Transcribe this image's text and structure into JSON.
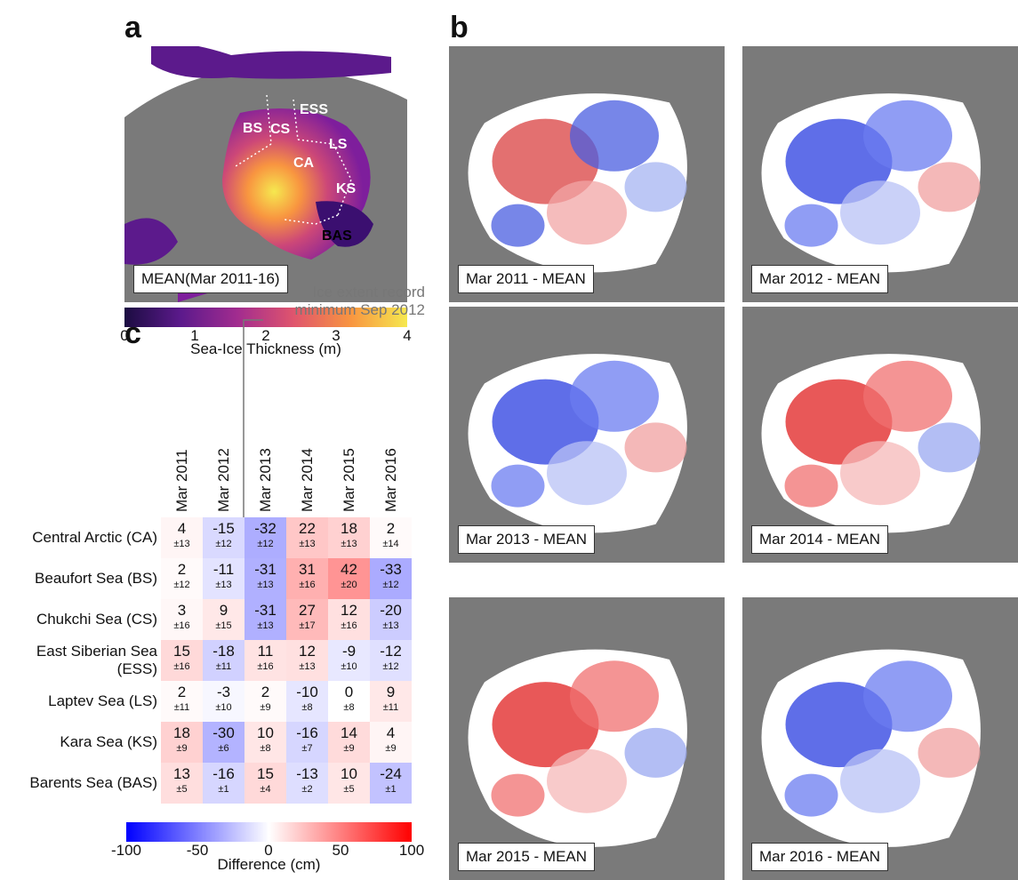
{
  "panel_a": {
    "letter": "a",
    "label": "MEAN(Mar 2011-16)",
    "regions": [
      "CS",
      "ESS",
      "BS",
      "LS",
      "CA",
      "KS",
      "BAS"
    ],
    "colorbar": {
      "ticks": [
        "0",
        "1",
        "2",
        "3",
        "4"
      ],
      "title": "Sea-Ice Thickness (m)",
      "colors": [
        "#1b0c41",
        "#5c1a8c",
        "#a22c8f",
        "#e0556d",
        "#f89540",
        "#f6e84f"
      ]
    }
  },
  "panel_b": {
    "letter": "b",
    "maps": [
      {
        "label": "Mar 2011 - MEAN",
        "pattern": "mixed"
      },
      {
        "label": "Mar 2012 - MEAN",
        "pattern": "blue"
      },
      {
        "label": "Mar 2013 - MEAN",
        "pattern": "blue"
      },
      {
        "label": "Mar 2014 - MEAN",
        "pattern": "red"
      },
      {
        "label": "Mar 2015 - MEAN",
        "pattern": "red"
      },
      {
        "label": "Mar 2016 - MEAN",
        "pattern": "blue"
      }
    ]
  },
  "panel_c": {
    "letter": "c",
    "annotation_line1": "Ice extent record",
    "annotation_line2": "minimum Sep 2012",
    "colorbar": {
      "ticks": [
        "-100",
        "-50",
        "0",
        "50",
        "100"
      ],
      "title": "Difference (cm)",
      "colors": [
        "#0000ff",
        "#ffffff",
        "#ff0000"
      ]
    }
  },
  "chart_data": {
    "type": "heatmap",
    "columns": [
      "Mar 2011",
      "Mar 2012",
      "Mar 2013",
      "Mar 2014",
      "Mar 2015",
      "Mar 2016"
    ],
    "rows": [
      {
        "label": "Central Arctic (CA)",
        "values": [
          4,
          -15,
          -32,
          22,
          18,
          2
        ],
        "uncertainty": [
          13,
          12,
          12,
          13,
          13,
          14
        ]
      },
      {
        "label": "Beaufort Sea (BS)",
        "values": [
          2,
          -11,
          -31,
          31,
          42,
          -33
        ],
        "uncertainty": [
          12,
          13,
          13,
          16,
          20,
          12
        ]
      },
      {
        "label": "Chukchi Sea (CS)",
        "values": [
          3,
          9,
          -31,
          27,
          12,
          -20
        ],
        "uncertainty": [
          16,
          15,
          13,
          17,
          16,
          13
        ]
      },
      {
        "label": "East Siberian Sea|(ESS)",
        "values": [
          15,
          -18,
          11,
          12,
          -9,
          -12
        ],
        "uncertainty": [
          16,
          11,
          16,
          13,
          10,
          12
        ]
      },
      {
        "label": "Laptev Sea (LS)",
        "values": [
          2,
          -3,
          2,
          -10,
          0,
          9
        ],
        "uncertainty": [
          11,
          10,
          9,
          8,
          8,
          11
        ]
      },
      {
        "label": "Kara Sea (KS)",
        "values": [
          18,
          -30,
          10,
          -16,
          14,
          4
        ],
        "uncertainty": [
          9,
          6,
          8,
          7,
          9,
          9
        ]
      },
      {
        "label": "Barents Sea (BAS)",
        "values": [
          13,
          -16,
          15,
          -13,
          10,
          -24
        ],
        "uncertainty": [
          5,
          1,
          4,
          2,
          5,
          1
        ]
      }
    ],
    "uncertainty_prefix": "±",
    "color_range": [
      -100,
      100
    ]
  }
}
